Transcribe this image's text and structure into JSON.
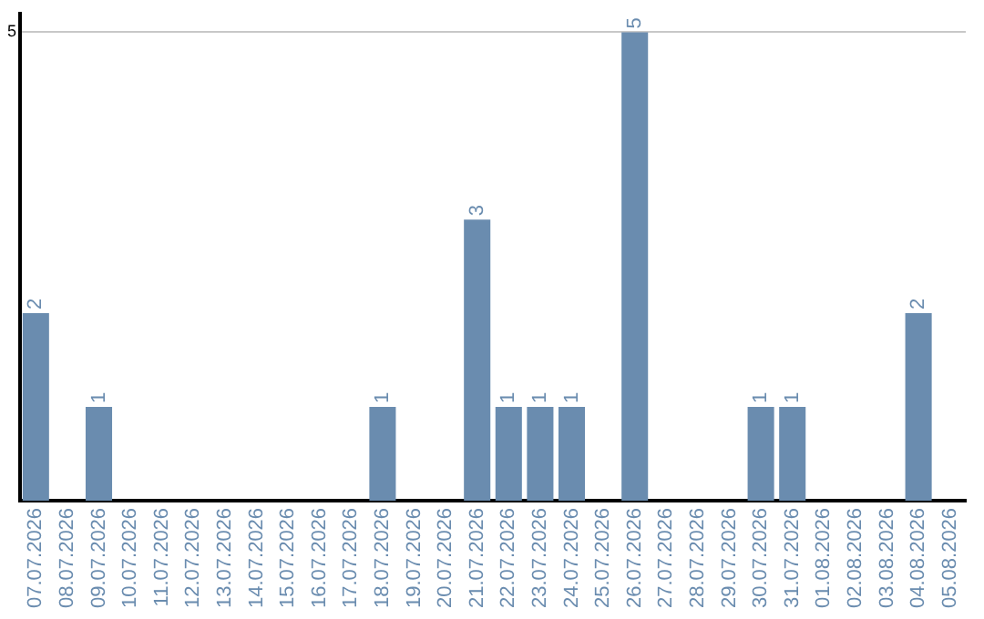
{
  "chart_data": {
    "type": "bar",
    "categories": [
      "07.07.2026",
      "08.07.2026",
      "09.07.2026",
      "10.07.2026",
      "11.07.2026",
      "12.07.2026",
      "13.07.2026",
      "14.07.2026",
      "15.07.2026",
      "16.07.2026",
      "17.07.2026",
      "18.07.2026",
      "19.07.2026",
      "20.07.2026",
      "21.07.2026",
      "22.07.2026",
      "23.07.2026",
      "24.07.2026",
      "25.07.2026",
      "26.07.2026",
      "27.07.2026",
      "28.07.2026",
      "29.07.2026",
      "30.07.2026",
      "31.07.2026",
      "01.08.2026",
      "02.08.2026",
      "03.08.2026",
      "04.08.2026",
      "05.08.2026"
    ],
    "values": [
      2,
      0,
      1,
      0,
      0,
      0,
      0,
      0,
      0,
      0,
      0,
      1,
      0,
      0,
      3,
      1,
      1,
      1,
      0,
      5,
      0,
      0,
      0,
      1,
      1,
      0,
      0,
      0,
      2,
      0
    ],
    "value_labels": [
      "2",
      null,
      "1",
      null,
      null,
      null,
      null,
      null,
      null,
      null,
      null,
      "1",
      null,
      null,
      "3",
      "1",
      "1",
      "1",
      null,
      "5",
      null,
      null,
      null,
      "1",
      "1",
      null,
      null,
      null,
      "2",
      null
    ],
    "color": "#6a8caf",
    "ylim": [
      0,
      5.2
    ],
    "yticks": [
      5
    ],
    "grid": "y",
    "legend": false
  }
}
